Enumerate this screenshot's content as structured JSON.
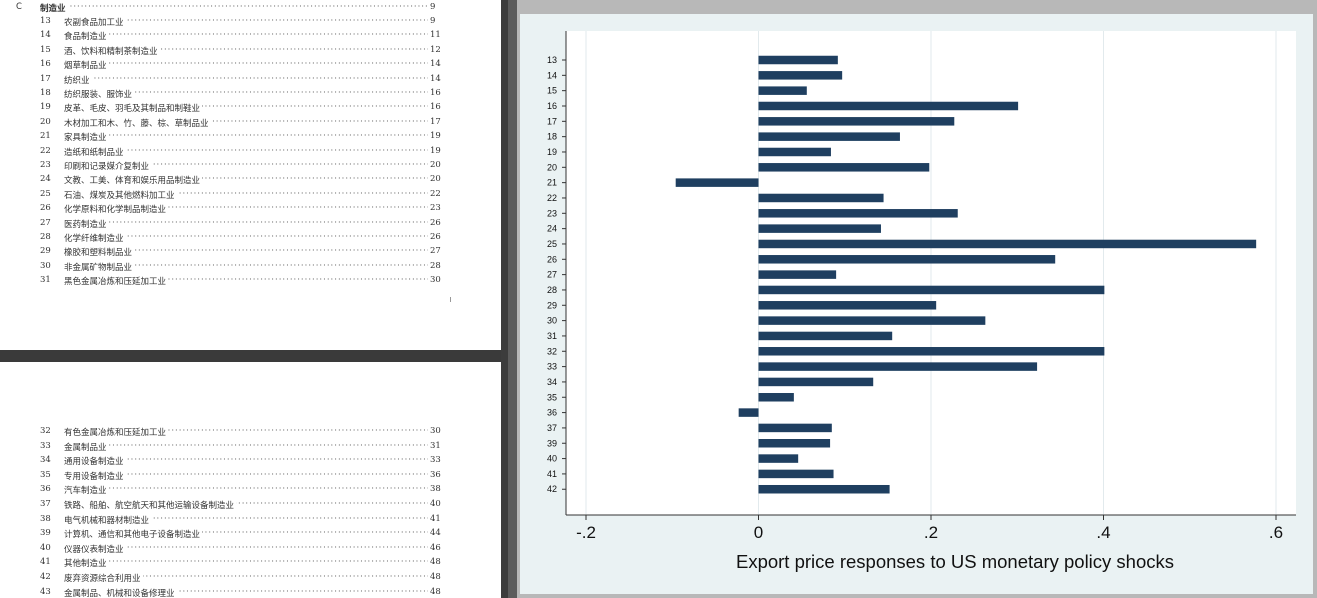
{
  "toc_top": {
    "section_letter": "C",
    "section_name": "制造业",
    "section_page": "9",
    "rows": [
      {
        "code": "13",
        "name": "农副食品加工业",
        "page": "9"
      },
      {
        "code": "14",
        "name": "食品制造业",
        "page": "11"
      },
      {
        "code": "15",
        "name": "酒、饮料和精制茶制造业",
        "page": "12"
      },
      {
        "code": "16",
        "name": "烟草制品业",
        "page": "14"
      },
      {
        "code": "17",
        "name": "纺织业",
        "page": "14"
      },
      {
        "code": "18",
        "name": "纺织服装、服饰业",
        "page": "16"
      },
      {
        "code": "19",
        "name": "皮革、毛皮、羽毛及其制品和制鞋业",
        "page": "16"
      },
      {
        "code": "20",
        "name": "木材加工和木、竹、藤、棕、草制品业",
        "page": "17"
      },
      {
        "code": "21",
        "name": "家具制造业",
        "page": "19"
      },
      {
        "code": "22",
        "name": "造纸和纸制品业",
        "page": "19"
      },
      {
        "code": "23",
        "name": "印刷和记录媒介复制业",
        "page": "20"
      },
      {
        "code": "24",
        "name": "文教、工美、体育和娱乐用品制造业",
        "page": "20"
      },
      {
        "code": "25",
        "name": "石油、煤炭及其他燃料加工业",
        "page": "22"
      },
      {
        "code": "26",
        "name": "化学原料和化学制品制造业",
        "page": "23"
      },
      {
        "code": "27",
        "name": "医药制造业",
        "page": "26"
      },
      {
        "code": "28",
        "name": "化学纤维制造业",
        "page": "26"
      },
      {
        "code": "29",
        "name": "橡胶和塑料制品业",
        "page": "27"
      },
      {
        "code": "30",
        "name": "非金属矿物制品业",
        "page": "28"
      },
      {
        "code": "31",
        "name": "黑色金属冶炼和压延加工业",
        "page": "30"
      }
    ]
  },
  "toc_bottom": {
    "rows": [
      {
        "code": "32",
        "name": "有色金属冶炼和压延加工业",
        "page": "30"
      },
      {
        "code": "33",
        "name": "金属制品业",
        "page": "31"
      },
      {
        "code": "34",
        "name": "通用设备制造业",
        "page": "33"
      },
      {
        "code": "35",
        "name": "专用设备制造业",
        "page": "36"
      },
      {
        "code": "36",
        "name": "汽车制造业",
        "page": "38"
      },
      {
        "code": "37",
        "name": "铁路、船舶、航空航天和其他运输设备制造业",
        "page": "40"
      },
      {
        "code": "38",
        "name": "电气机械和器材制造业",
        "page": "41"
      },
      {
        "code": "39",
        "name": "计算机、通信和其他电子设备制造业",
        "page": "44"
      },
      {
        "code": "40",
        "name": "仪器仪表制造业",
        "page": "46"
      },
      {
        "code": "41",
        "name": "其他制造业",
        "page": "48"
      },
      {
        "code": "42",
        "name": "废弃资源综合利用业",
        "page": "48"
      },
      {
        "code": "43",
        "name": "金属制品、机械和设备修理业",
        "page": "48"
      }
    ]
  },
  "chart_data": {
    "type": "bar",
    "orientation": "horizontal",
    "categories": [
      "13",
      "14",
      "15",
      "16",
      "17",
      "18",
      "19",
      "20",
      "21",
      "22",
      "23",
      "24",
      "25",
      "26",
      "27",
      "28",
      "29",
      "30",
      "31",
      "32",
      "33",
      "34",
      "35",
      "36",
      "37",
      "39",
      "40",
      "41",
      "42"
    ],
    "values": [
      0.092,
      0.097,
      0.056,
      0.301,
      0.227,
      0.164,
      0.084,
      0.198,
      -0.096,
      0.145,
      0.231,
      0.142,
      0.577,
      0.344,
      0.09,
      0.401,
      0.206,
      0.263,
      0.155,
      0.401,
      0.323,
      0.133,
      0.041,
      -0.023,
      0.085,
      0.083,
      0.046,
      0.087,
      0.152
    ],
    "xlabel": "Export price responses to US monetary policy shocks",
    "xticks": [
      -0.2,
      0,
      0.2,
      0.4,
      0.6
    ],
    "xtick_labels": [
      "-.2",
      "0",
      ".2",
      ".4",
      ".6"
    ],
    "xlim": [
      -0.2,
      0.6
    ],
    "grid": true,
    "bar_color": "#1f3f60",
    "plot_background": "#ffffff",
    "outer_background": "#eaf2f3"
  }
}
